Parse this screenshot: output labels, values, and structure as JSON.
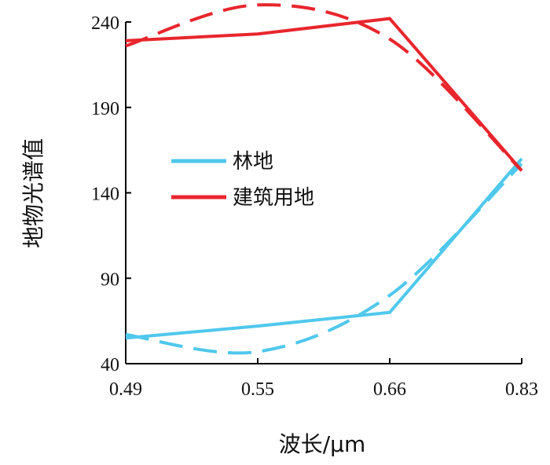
{
  "chart_data": {
    "type": "line",
    "xlabel": "波长/μm",
    "ylabel": "地物光谱值",
    "x_categories": [
      "0.49",
      "0.55",
      "0.66",
      "0.83"
    ],
    "ylim": [
      40,
      240
    ],
    "yticks": [
      40,
      90,
      140,
      190,
      240
    ],
    "grid": false,
    "legend_position": "center-left",
    "series": [
      {
        "name": "林地",
        "color": "#4FC8EC",
        "values": [
          55,
          62,
          70,
          160
        ],
        "fit_values": [
          57,
          47,
          80,
          157
        ]
      },
      {
        "name": "建筑用地",
        "color": "#E8262D",
        "values": [
          229,
          233,
          242,
          153
        ],
        "fit_values": [
          226,
          250,
          230,
          153
        ]
      }
    ]
  }
}
